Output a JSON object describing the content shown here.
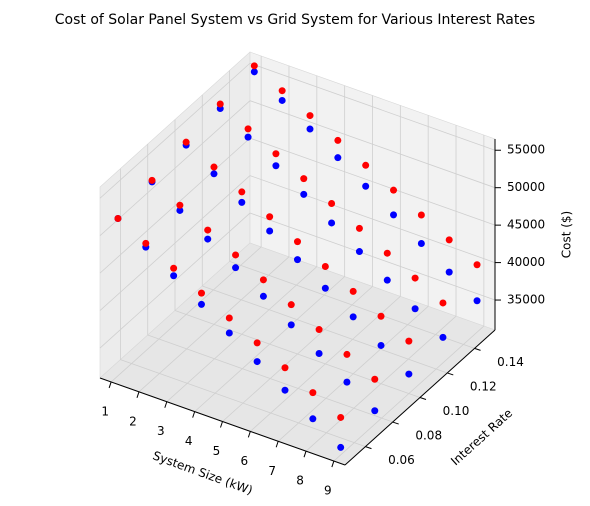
{
  "chart_data": {
    "type": "scatter3d",
    "title": "Cost of Solar Panel System vs Grid System for Various Interest Rates",
    "x_label": "System Size (kW)",
    "y_label": "Interest Rate",
    "z_label": "Cost ($)",
    "x": [
      1,
      2,
      3,
      4,
      5,
      6,
      7,
      8,
      9,
      1,
      2,
      3,
      4,
      5,
      6,
      7,
      8,
      9,
      1,
      2,
      3,
      4,
      5,
      6,
      7,
      8,
      9,
      1,
      2,
      3,
      4,
      5,
      6,
      7,
      8,
      9,
      1,
      2,
      3,
      4,
      5,
      6,
      7,
      8,
      9
    ],
    "y": [
      0.05,
      0.05,
      0.05,
      0.05,
      0.05,
      0.05,
      0.05,
      0.05,
      0.05,
      0.075,
      0.075,
      0.075,
      0.075,
      0.075,
      0.075,
      0.075,
      0.075,
      0.075,
      0.1,
      0.1,
      0.1,
      0.1,
      0.1,
      0.1,
      0.1,
      0.1,
      0.1,
      0.125,
      0.125,
      0.125,
      0.125,
      0.125,
      0.125,
      0.125,
      0.125,
      0.125,
      0.15,
      0.15,
      0.15,
      0.15,
      0.15,
      0.15,
      0.15,
      0.15,
      0.15
    ],
    "series": [
      {
        "color": "#0000ff",
        "values": [
          52000,
          49500,
          47000,
          44500,
          42000,
          39500,
          37000,
          34500,
          32000,
          52800,
          50300,
          47800,
          45300,
          42800,
          40300,
          37800,
          35300,
          32800,
          53600,
          51100,
          48600,
          46100,
          43600,
          41100,
          38600,
          36100,
          33600,
          54400,
          51900,
          49400,
          46900,
          44400,
          41900,
          39400,
          36900,
          34400,
          55200,
          52700,
          50200,
          47700,
          45200,
          42700,
          40200,
          37700,
          35200
        ]
      },
      {
        "color": "#ff0000",
        "values": [
          52000,
          50000,
          48000,
          46000,
          44000,
          42000,
          40000,
          38000,
          36000,
          53000,
          51000,
          49000,
          47000,
          45000,
          43000,
          41000,
          39000,
          37000,
          54000,
          52000,
          50000,
          48000,
          46000,
          44000,
          42000,
          40000,
          38000,
          55000,
          53000,
          51000,
          49000,
          47000,
          45000,
          43000,
          41000,
          39000,
          56000,
          54000,
          52000,
          50000,
          48000,
          46000,
          44000,
          42000,
          40000
        ]
      }
    ],
    "xlim": [
      0.6,
      9.4
    ],
    "xticks": [
      1,
      2,
      3,
      4,
      5,
      6,
      7,
      8,
      9
    ],
    "ylim": [
      0.045,
      0.155
    ],
    "yticks": [
      0.06,
      0.08,
      {
        "value": 0.1,
        "label": "0.10"
      },
      0.12,
      0.14
    ],
    "zlim": [
      31000,
      56500
    ],
    "zticks": [
      35000,
      40000,
      45000,
      50000,
      55000
    ],
    "grid": true
  }
}
